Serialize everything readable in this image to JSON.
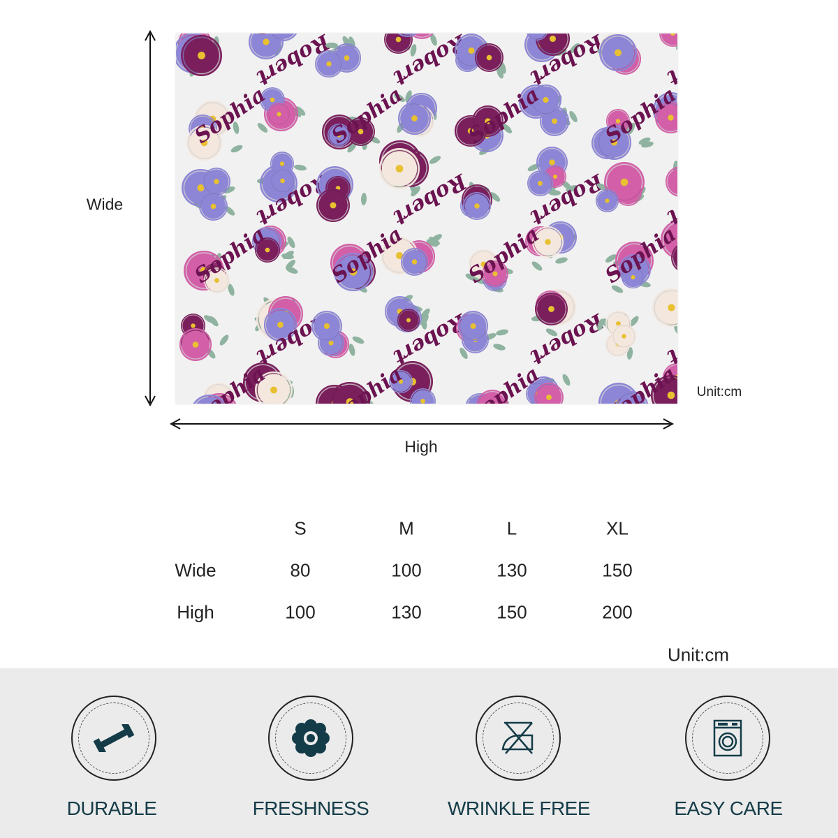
{
  "diagram": {
    "wide_label": "Wide",
    "high_label": "High",
    "unit_label": "Unit:cm",
    "pattern_names": [
      "Sophia",
      "Robert"
    ],
    "pattern_colors": {
      "name": "#6b1350",
      "rose_dark": "#7a1f5c",
      "rose_lavender": "#8d86d6",
      "rose_pink": "#d35fa8",
      "cream": "#f3e7de",
      "leaf": "#8fb3a0"
    }
  },
  "size_table": {
    "columns": [
      "S",
      "M",
      "L",
      "XL"
    ],
    "rows": [
      {
        "label": "Wide",
        "values": [
          "80",
          "100",
          "130",
          "150"
        ]
      },
      {
        "label": "High",
        "values": [
          "100",
          "130",
          "150",
          "200"
        ]
      }
    ],
    "unit_label": "Unit:cm"
  },
  "features": [
    {
      "label": "DURABLE",
      "icon": "dumbbell-icon"
    },
    {
      "label": "FRESHNESS",
      "icon": "flower-icon"
    },
    {
      "label": "WRINKLE FREE",
      "icon": "no-iron-icon"
    },
    {
      "label": "EASY CARE",
      "icon": "washing-machine-icon"
    }
  ],
  "icon_color": "#143c48"
}
